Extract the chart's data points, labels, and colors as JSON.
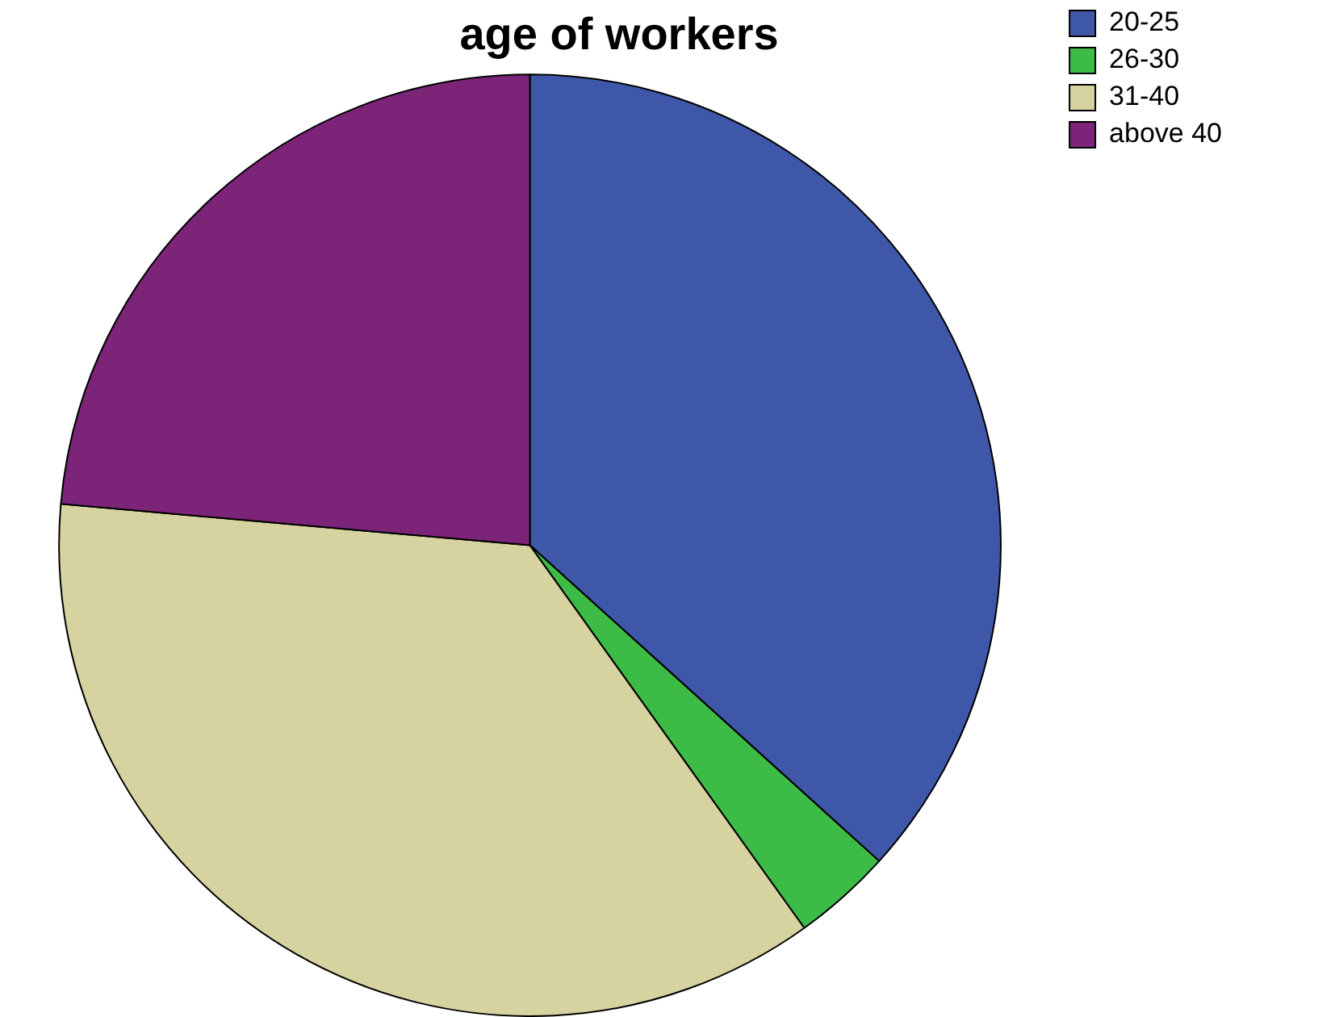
{
  "chart_data": {
    "type": "pie",
    "title": "age of workers",
    "categories": [
      "20-25",
      "26-30",
      "31-40",
      "above 40"
    ],
    "values": [
      36.7,
      3.4,
      36.3,
      23.6
    ],
    "colors": [
      "#3f57a8",
      "#3dbb47",
      "#d6d3a0",
      "#7b2478"
    ],
    "legend": "top right"
  }
}
